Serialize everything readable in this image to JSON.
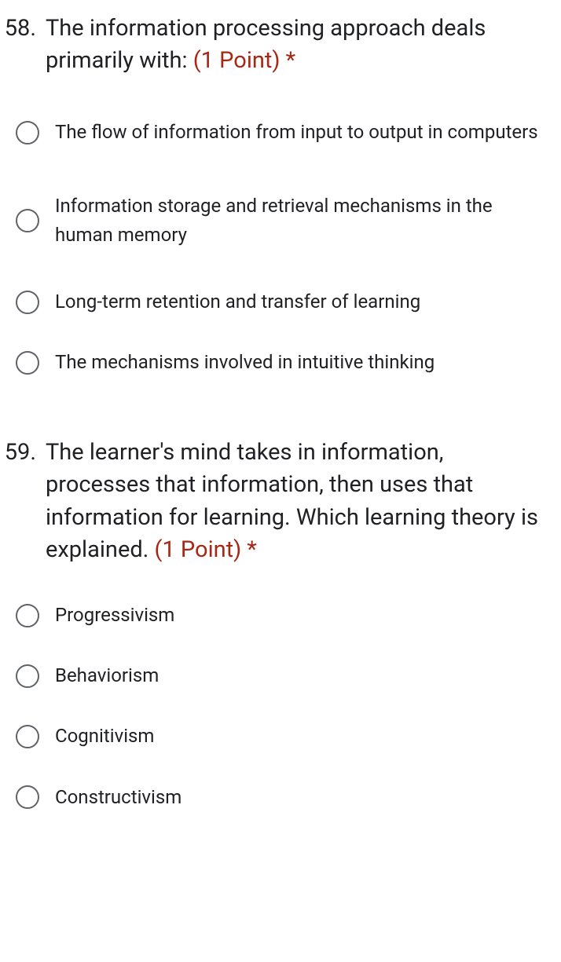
{
  "questions": [
    {
      "number": "58.",
      "text": "The information processing approach deals primarily with: ",
      "points": "(1 Point)",
      "required": " *",
      "options": [
        "The flow of information from input to output in computers",
        "Information storage and retrieval mechanisms in the human memory",
        "Long-term retention and transfer of learning",
        "The mechanisms involved in intuitive thinking"
      ]
    },
    {
      "number": "59.",
      "text": "The learner's mind takes in information, processes that information, then uses that information for learning. Which learning theory is explained. ",
      "points": "(1 Point)",
      "required": " *",
      "options": [
        "Progressivism",
        "Behaviorism",
        "Cognitivism",
        "Constructivism"
      ]
    }
  ],
  "colors": {
    "text": "#202124",
    "points": "#a52714",
    "radio_border": "#5f6368",
    "background": "#ffffff"
  },
  "typography": {
    "question_fontsize": 29,
    "option_fontsize": 24,
    "font_family": "Roboto"
  }
}
